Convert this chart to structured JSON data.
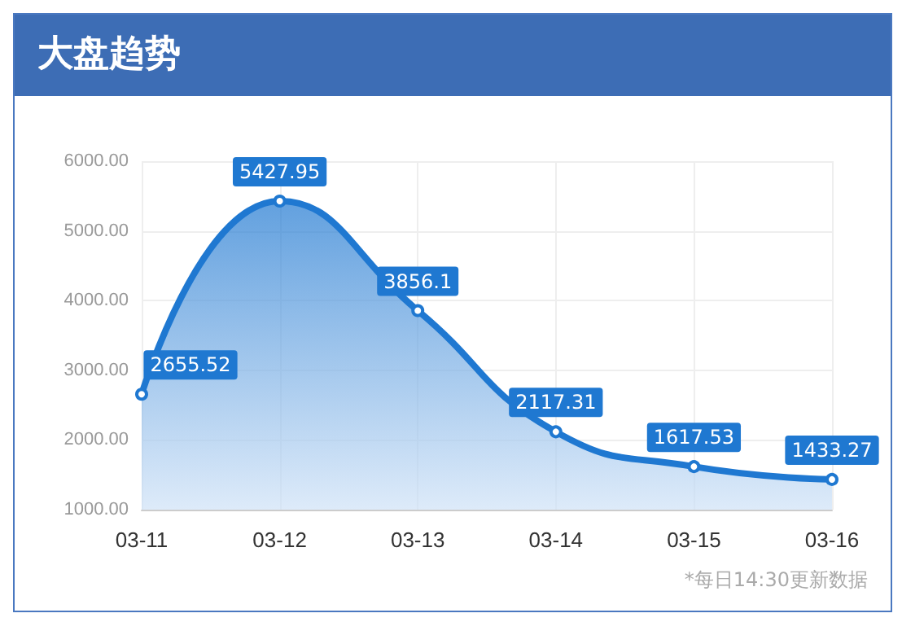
{
  "chart_data": {
    "type": "area",
    "title": "大盘趋势",
    "categories": [
      "03-11",
      "03-12",
      "03-13",
      "03-14",
      "03-15",
      "03-16"
    ],
    "series": [
      {
        "color": "#1f78d1",
        "values": [
          2655.52,
          5427.95,
          3856.1,
          2117.31,
          1617.53,
          1433.27
        ]
      }
    ],
    "ylim": [
      1000,
      6000
    ],
    "yticks": [
      {
        "value": 1000,
        "label": "1000.00"
      },
      {
        "value": 2000,
        "label": "2000.00"
      },
      {
        "value": 3000,
        "label": "3000.00"
      },
      {
        "value": 4000,
        "label": "4000.00"
      },
      {
        "value": 5000,
        "label": "5000.00"
      },
      {
        "value": 6000,
        "label": "6000.00"
      }
    ],
    "grid": true,
    "data_labels": true,
    "marker": "circle",
    "annotations": [
      "*每日14:30更新数据"
    ]
  }
}
